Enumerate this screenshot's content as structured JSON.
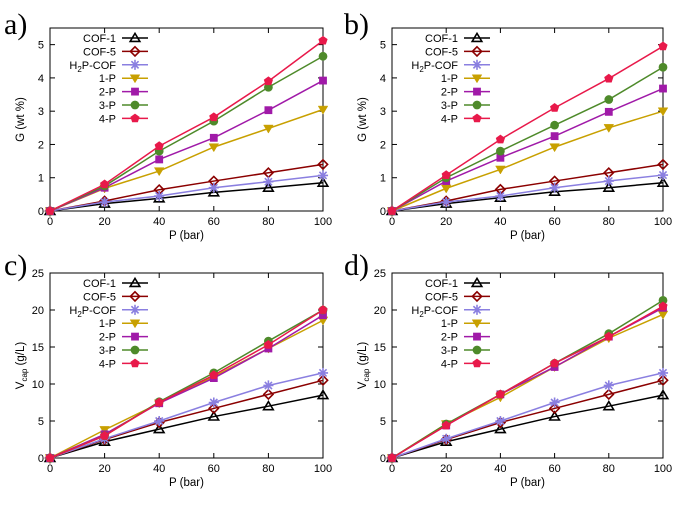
{
  "colors": {
    "COF-1": "#000000",
    "COF-5": "#8b0000",
    "H2P-COF": "#8a7fe0",
    "1-P": "#c8a000",
    "2-P": "#a01aa8",
    "3-P": "#4e8a2a",
    "4-P": "#e8194a"
  },
  "chart_data": [
    {
      "panel": "a)",
      "type": "line",
      "xlabel": "P (bar)",
      "ylabel": "G (wt %)",
      "xlim": [
        0,
        100
      ],
      "ylim": [
        0,
        5.5
      ],
      "xticks": [
        "0",
        "20",
        "40",
        "60",
        "80",
        "100"
      ],
      "yticks": [
        "0",
        "1",
        "2",
        "3",
        "4",
        "5"
      ],
      "grid": false,
      "legend_position": "top-left",
      "x": [
        0,
        20,
        40,
        60,
        80,
        100
      ],
      "series": [
        {
          "name": "COF-1",
          "label_base": "COF-1",
          "label_sub": "",
          "label_rest": "",
          "marker": "triangle-open",
          "values": [
            0,
            0.22,
            0.38,
            0.56,
            0.7,
            0.85
          ]
        },
        {
          "name": "COF-5",
          "label_base": "COF-5",
          "label_sub": "",
          "label_rest": "",
          "marker": "diamond-open",
          "values": [
            0,
            0.3,
            0.64,
            0.9,
            1.15,
            1.4
          ]
        },
        {
          "name": "H2P-COF",
          "label_base": "H",
          "label_sub": "2",
          "label_rest": "P-COF",
          "marker": "star",
          "values": [
            0,
            0.27,
            0.45,
            0.7,
            0.88,
            1.07
          ]
        },
        {
          "name": "1-P",
          "label_base": "1-P",
          "label_sub": "",
          "label_rest": "",
          "marker": "triangle-down-filled",
          "values": [
            0,
            0.68,
            1.2,
            1.92,
            2.48,
            3.05
          ]
        },
        {
          "name": "2-P",
          "label_base": "2-P",
          "label_sub": "",
          "label_rest": "",
          "marker": "square-filled",
          "values": [
            0,
            0.7,
            1.55,
            2.2,
            3.03,
            3.92
          ]
        },
        {
          "name": "3-P",
          "label_base": "3-P",
          "label_sub": "",
          "label_rest": "",
          "marker": "circle-filled",
          "values": [
            0,
            0.75,
            1.8,
            2.7,
            3.72,
            4.65
          ]
        },
        {
          "name": "4-P",
          "label_base": "4-P",
          "label_sub": "",
          "label_rest": "",
          "marker": "pentagon-filled",
          "values": [
            0,
            0.8,
            1.95,
            2.82,
            3.9,
            5.12
          ]
        }
      ]
    },
    {
      "panel": "b)",
      "type": "line",
      "xlabel": "P (bar)",
      "ylabel": "G (wt %)",
      "xlim": [
        0,
        100
      ],
      "ylim": [
        0,
        5.5
      ],
      "xticks": [
        "0",
        "20",
        "40",
        "60",
        "80",
        "100"
      ],
      "yticks": [
        "0",
        "1",
        "2",
        "3",
        "4",
        "5"
      ],
      "grid": false,
      "legend_position": "top-left",
      "x": [
        0,
        20,
        40,
        60,
        80,
        100
      ],
      "series": [
        {
          "name": "COF-1",
          "label_base": "COF-1",
          "label_sub": "",
          "label_rest": "",
          "marker": "triangle-open",
          "values": [
            0,
            0.22,
            0.4,
            0.58,
            0.7,
            0.85
          ]
        },
        {
          "name": "COF-5",
          "label_base": "COF-5",
          "label_sub": "",
          "label_rest": "",
          "marker": "diamond-open",
          "values": [
            0,
            0.3,
            0.65,
            0.9,
            1.15,
            1.4
          ]
        },
        {
          "name": "H2P-COF",
          "label_base": "H",
          "label_sub": "2",
          "label_rest": "P-COF",
          "marker": "star",
          "values": [
            0,
            0.27,
            0.45,
            0.7,
            0.9,
            1.08
          ]
        },
        {
          "name": "1-P",
          "label_base": "1-P",
          "label_sub": "",
          "label_rest": "",
          "marker": "triangle-down-filled",
          "values": [
            0,
            0.68,
            1.25,
            1.92,
            2.5,
            3.0
          ]
        },
        {
          "name": "2-P",
          "label_base": "2-P",
          "label_sub": "",
          "label_rest": "",
          "marker": "square-filled",
          "values": [
            0,
            0.9,
            1.6,
            2.25,
            2.98,
            3.68
          ]
        },
        {
          "name": "3-P",
          "label_base": "3-P",
          "label_sub": "",
          "label_rest": "",
          "marker": "circle-filled",
          "values": [
            0,
            1.0,
            1.8,
            2.58,
            3.35,
            4.32
          ]
        },
        {
          "name": "4-P",
          "label_base": "4-P",
          "label_sub": "",
          "label_rest": "",
          "marker": "pentagon-filled",
          "values": [
            0,
            1.08,
            2.15,
            3.1,
            3.98,
            4.95
          ]
        }
      ]
    },
    {
      "panel": "c)",
      "type": "line",
      "xlabel": "P (bar)",
      "ylabel_base": "V",
      "ylabel_sub": "cap",
      "ylabel_rest": " (g/L)",
      "xlim": [
        0,
        100
      ],
      "ylim": [
        0,
        25
      ],
      "xticks": [
        "0",
        "20",
        "40",
        "60",
        "80",
        "100"
      ],
      "yticks": [
        "0",
        "5",
        "10",
        "15",
        "20",
        "25"
      ],
      "grid": false,
      "legend_position": "top-left",
      "x": [
        0,
        20,
        40,
        60,
        80,
        100
      ],
      "series": [
        {
          "name": "COF-1",
          "label_base": "COF-1",
          "label_sub": "",
          "label_rest": "",
          "marker": "triangle-open",
          "values": [
            0,
            2.2,
            3.9,
            5.6,
            7.0,
            8.5
          ]
        },
        {
          "name": "COF-5",
          "label_base": "COF-5",
          "label_sub": "",
          "label_rest": "",
          "marker": "diamond-open",
          "values": [
            0,
            2.5,
            4.8,
            6.7,
            8.6,
            10.5
          ]
        },
        {
          "name": "H2P-COF",
          "label_base": "H",
          "label_sub": "2",
          "label_rest": "P-COF",
          "marker": "star",
          "values": [
            0,
            2.6,
            5.0,
            7.5,
            9.8,
            11.5
          ]
        },
        {
          "name": "1-P",
          "label_base": "1-P",
          "label_sub": "",
          "label_rest": "",
          "marker": "triangle-down-filled",
          "values": [
            0,
            3.8,
            7.4,
            11.0,
            14.8,
            18.6
          ]
        },
        {
          "name": "2-P",
          "label_base": "2-P",
          "label_sub": "",
          "label_rest": "",
          "marker": "square-filled",
          "values": [
            0,
            3.2,
            7.4,
            10.8,
            14.8,
            19.3
          ]
        },
        {
          "name": "3-P",
          "label_base": "3-P",
          "label_sub": "",
          "label_rest": "",
          "marker": "circle-filled",
          "values": [
            0,
            3.0,
            7.6,
            11.5,
            15.8,
            20.0
          ]
        },
        {
          "name": "4-P",
          "label_base": "4-P",
          "label_sub": "",
          "label_rest": "",
          "marker": "pentagon-filled",
          "values": [
            0,
            3.0,
            7.5,
            11.2,
            15.3,
            20.0
          ]
        }
      ]
    },
    {
      "panel": "d)",
      "type": "line",
      "xlabel": "P (bar)",
      "ylabel_base": "V",
      "ylabel_sub": "cap",
      "ylabel_rest": " (g/L)",
      "xlim": [
        0,
        100
      ],
      "ylim": [
        0,
        25
      ],
      "xticks": [
        "0",
        "20",
        "40",
        "60",
        "80",
        "100"
      ],
      "yticks": [
        "0",
        "5",
        "10",
        "15",
        "20",
        "25"
      ],
      "grid": false,
      "legend_position": "top-left",
      "x": [
        0,
        20,
        40,
        60,
        80,
        100
      ],
      "series": [
        {
          "name": "COF-1",
          "label_base": "COF-1",
          "label_sub": "",
          "label_rest": "",
          "marker": "triangle-open",
          "values": [
            0,
            2.2,
            3.9,
            5.6,
            7.0,
            8.5
          ]
        },
        {
          "name": "COF-5",
          "label_base": "COF-5",
          "label_sub": "",
          "label_rest": "",
          "marker": "diamond-open",
          "values": [
            0,
            2.5,
            4.8,
            6.7,
            8.6,
            10.5
          ]
        },
        {
          "name": "H2P-COF",
          "label_base": "H",
          "label_sub": "2",
          "label_rest": "P-COF",
          "marker": "star",
          "values": [
            0,
            2.6,
            5.0,
            7.5,
            9.8,
            11.5
          ]
        },
        {
          "name": "1-P",
          "label_base": "1-P",
          "label_sub": "",
          "label_rest": "",
          "marker": "triangle-down-filled",
          "values": [
            0,
            4.6,
            8.2,
            12.3,
            16.2,
            19.4
          ]
        },
        {
          "name": "2-P",
          "label_base": "2-P",
          "label_sub": "",
          "label_rest": "",
          "marker": "square-filled",
          "values": [
            0,
            4.4,
            8.6,
            12.3,
            16.4,
            20.3
          ]
        },
        {
          "name": "3-P",
          "label_base": "3-P",
          "label_sub": "",
          "label_rest": "",
          "marker": "circle-filled",
          "values": [
            0,
            4.6,
            8.6,
            12.8,
            16.8,
            21.3
          ]
        },
        {
          "name": "4-P",
          "label_base": "4-P",
          "label_sub": "",
          "label_rest": "",
          "marker": "pentagon-filled",
          "values": [
            0,
            4.4,
            8.6,
            12.8,
            16.4,
            20.5
          ]
        }
      ]
    }
  ]
}
